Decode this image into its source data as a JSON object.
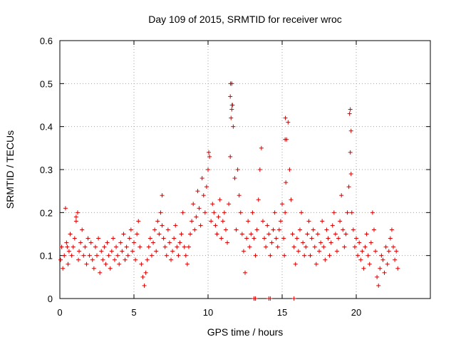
{
  "chart_data": {
    "type": "scatter",
    "title": "Day 109 of 2015, SRMTID for receiver wroc",
    "xlabel": "GPS time / hours",
    "ylabel": "SRMTID / TECUs",
    "xlim": [
      0,
      25
    ],
    "ylim": [
      0,
      0.6
    ],
    "xticks": [
      0,
      5,
      10,
      15,
      20
    ],
    "xtick_labels": [
      "0",
      "5",
      "10",
      "15",
      "20"
    ],
    "yticks": [
      0,
      0.1,
      0.2,
      0.3,
      0.4,
      0.5,
      0.6
    ],
    "ytick_labels": [
      "0",
      "0.1",
      "0.2",
      "0.3",
      "0.4",
      "0.5",
      "0.6"
    ],
    "grid": true,
    "marker": "+",
    "color": "#d40000",
    "series": [
      {
        "name": "SRMTID",
        "x": [
          0.05,
          0.12,
          0.2,
          0.3,
          0.38,
          0.45,
          0.55,
          0.62,
          0.7,
          0.8,
          0.9,
          1.0,
          1.1,
          1.2,
          1.25,
          1.3,
          1.4,
          1.5,
          1.6,
          1.7,
          1.8,
          1.9,
          2.0,
          2.1,
          2.2,
          2.3,
          2.4,
          2.5,
          2.6,
          2.7,
          2.8,
          2.9,
          3.0,
          3.1,
          3.2,
          3.3,
          3.4,
          3.5,
          3.6,
          3.7,
          3.8,
          3.9,
          4.0,
          4.1,
          4.2,
          4.3,
          4.4,
          4.5,
          4.6,
          4.7,
          4.8,
          4.9,
          5.0,
          5.1,
          5.2,
          5.3,
          5.4,
          5.5,
          5.6,
          5.7,
          5.8,
          5.9,
          6.0,
          6.1,
          6.2,
          6.3,
          6.4,
          6.5,
          6.6,
          6.7,
          6.8,
          6.9,
          7.0,
          7.1,
          7.2,
          7.3,
          7.4,
          7.5,
          7.6,
          7.7,
          7.8,
          7.9,
          8.0,
          8.1,
          8.2,
          8.3,
          8.4,
          8.5,
          8.6,
          8.7,
          8.8,
          8.9,
          9.0,
          9.1,
          9.2,
          9.3,
          9.4,
          9.5,
          9.6,
          9.7,
          9.8,
          9.9,
          10.0,
          10.1,
          10.2,
          10.3,
          10.4,
          10.5,
          10.6,
          10.7,
          10.8,
          10.9,
          11.0,
          11.1,
          11.2,
          11.3,
          11.4,
          11.5,
          11.55,
          11.6,
          11.65,
          11.7,
          11.8,
          11.9,
          12.0,
          12.1,
          12.2,
          12.3,
          12.4,
          12.5,
          12.6,
          12.7,
          12.8,
          12.9,
          13.0,
          13.1,
          13.2,
          13.3,
          13.4,
          13.5,
          13.6,
          13.7,
          13.8,
          13.9,
          14.0,
          14.1,
          14.2,
          14.3,
          14.4,
          14.5,
          14.6,
          14.7,
          14.8,
          14.9,
          15.0,
          15.1,
          15.15,
          15.2,
          15.25,
          15.3,
          15.4,
          15.5,
          15.6,
          15.7,
          15.8,
          15.9,
          16.0,
          16.1,
          16.2,
          16.3,
          16.4,
          16.5,
          16.6,
          16.7,
          16.8,
          16.9,
          17.0,
          17.1,
          17.2,
          17.3,
          17.4,
          17.5,
          17.6,
          17.7,
          17.8,
          17.9,
          18.0,
          18.1,
          18.2,
          18.3,
          18.4,
          18.5,
          18.6,
          18.7,
          18.8,
          18.9,
          19.0,
          19.1,
          19.2,
          19.3,
          19.4,
          19.5,
          19.55,
          19.6,
          19.65,
          19.7,
          19.8,
          19.9,
          20.0,
          20.1,
          20.2,
          20.3,
          20.4,
          20.5,
          20.6,
          20.7,
          20.8,
          20.9,
          21.0,
          21.1,
          21.2,
          21.3,
          21.4,
          21.5,
          21.6,
          21.7,
          21.8,
          21.9,
          22.0,
          22.1,
          22.2,
          22.3,
          22.4,
          22.5,
          22.6,
          22.7,
          22.8,
          13.1,
          13.2,
          14.1,
          14.2,
          15.8,
          0.5,
          1.1,
          6.9,
          10.0,
          10.05,
          11.5,
          11.52,
          11.6,
          11.62,
          15.2,
          15.22,
          19.6,
          19.65
        ],
        "y": [
          0.09,
          0.12,
          0.07,
          0.1,
          0.21,
          0.13,
          0.08,
          0.11,
          0.15,
          0.1,
          0.12,
          0.14,
          0.18,
          0.2,
          0.09,
          0.11,
          0.13,
          0.16,
          0.1,
          0.12,
          0.08,
          0.14,
          0.1,
          0.13,
          0.09,
          0.07,
          0.12,
          0.1,
          0.14,
          0.06,
          0.11,
          0.09,
          0.12,
          0.08,
          0.13,
          0.1,
          0.07,
          0.11,
          0.14,
          0.09,
          0.12,
          0.1,
          0.08,
          0.13,
          0.11,
          0.15,
          0.09,
          0.12,
          0.1,
          0.14,
          0.16,
          0.11,
          0.13,
          0.09,
          0.15,
          0.18,
          0.12,
          0.08,
          0.05,
          0.03,
          0.06,
          0.09,
          0.12,
          0.14,
          0.1,
          0.13,
          0.16,
          0.11,
          0.18,
          0.15,
          0.2,
          0.17,
          0.14,
          0.12,
          0.1,
          0.16,
          0.13,
          0.09,
          0.11,
          0.14,
          0.17,
          0.12,
          0.1,
          0.13,
          0.15,
          0.2,
          0.12,
          0.1,
          0.08,
          0.12,
          0.15,
          0.18,
          0.22,
          0.16,
          0.19,
          0.25,
          0.21,
          0.17,
          0.28,
          0.24,
          0.2,
          0.26,
          0.3,
          0.33,
          0.18,
          0.22,
          0.2,
          0.17,
          0.15,
          0.19,
          0.23,
          0.14,
          0.18,
          0.2,
          0.16,
          0.13,
          0.22,
          0.33,
          0.42,
          0.5,
          0.45,
          0.4,
          0.28,
          0.16,
          0.3,
          0.24,
          0.2,
          0.15,
          0.11,
          0.06,
          0.14,
          0.18,
          0.12,
          0.15,
          0.2,
          0.14,
          0.1,
          0.16,
          0.23,
          0.3,
          0.35,
          0.18,
          0.14,
          0.12,
          0.17,
          0.15,
          0.1,
          0.13,
          0.16,
          0.2,
          0.14,
          0.12,
          0.16,
          0.18,
          0.22,
          0.14,
          0.1,
          0.2,
          0.27,
          0.37,
          0.41,
          0.3,
          0.23,
          0.15,
          0.12,
          0.08,
          0.14,
          0.11,
          0.16,
          0.2,
          0.13,
          0.1,
          0.12,
          0.15,
          0.18,
          0.1,
          0.14,
          0.16,
          0.12,
          0.08,
          0.15,
          0.11,
          0.13,
          0.18,
          0.12,
          0.09,
          0.16,
          0.14,
          0.1,
          0.13,
          0.17,
          0.2,
          0.15,
          0.11,
          0.14,
          0.18,
          0.24,
          0.16,
          0.12,
          0.15,
          0.2,
          0.26,
          0.43,
          0.34,
          0.29,
          0.2,
          0.16,
          0.12,
          0.14,
          0.1,
          0.13,
          0.09,
          0.11,
          0.07,
          0.12,
          0.15,
          0.1,
          0.08,
          0.13,
          0.2,
          0.16,
          0.11,
          0.05,
          0.03,
          0.07,
          0.1,
          0.09,
          0.06,
          0.12,
          0.08,
          0.11,
          0.14,
          0.16,
          0.12,
          0.09,
          0.11,
          0.07,
          0.0,
          0.0,
          0.0,
          0.0,
          0.0,
          0.12,
          0.19,
          0.24,
          0.3,
          0.34,
          0.47,
          0.5,
          0.44,
          0.45,
          0.37,
          0.42,
          0.44,
          0.39
        ]
      }
    ]
  }
}
